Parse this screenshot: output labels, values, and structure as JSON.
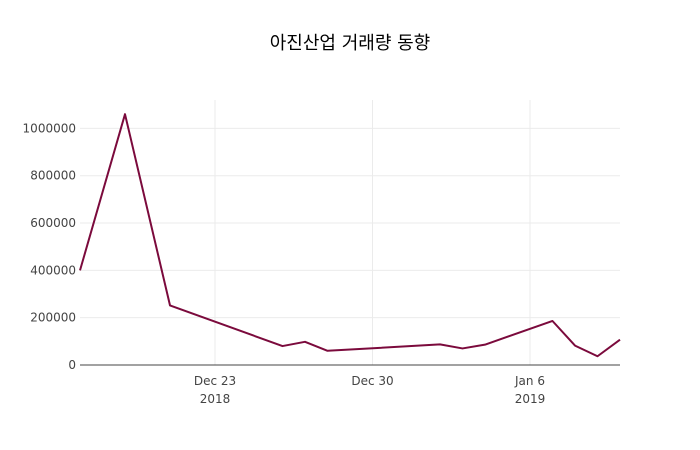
{
  "chart_data": {
    "type": "line",
    "title": "아진산업 거래량 동향",
    "xlabel": "",
    "ylabel": "",
    "ylim": [
      0,
      1120000
    ],
    "y_ticks": [
      0,
      200000,
      400000,
      600000,
      800000,
      1000000
    ],
    "y_tick_labels": [
      "0",
      "200000",
      "400000",
      "600000",
      "800000",
      "1000000"
    ],
    "x_ticks": [
      {
        "date": "2018-12-23",
        "label": "Dec 23",
        "sublabel": "2018"
      },
      {
        "date": "2018-12-30",
        "label": "Dec 30",
        "sublabel": ""
      },
      {
        "date": "2019-01-06",
        "label": "Jan 6",
        "sublabel": "2019"
      }
    ],
    "x_range": [
      "2018-12-17",
      "2019-01-10"
    ],
    "grid": true,
    "series": [
      {
        "name": "거래량",
        "color": "#7b0a3c",
        "x": [
          "2018-12-17",
          "2018-12-19",
          "2018-12-21",
          "2018-12-26",
          "2018-12-27",
          "2018-12-28",
          "2019-01-02",
          "2019-01-03",
          "2019-01-04",
          "2019-01-07",
          "2019-01-08",
          "2019-01-09",
          "2019-01-10"
        ],
        "y": [
          400000,
          1060000,
          252000,
          80000,
          98000,
          60000,
          87000,
          70000,
          86000,
          186000,
          82000,
          37000,
          107000
        ]
      }
    ]
  }
}
